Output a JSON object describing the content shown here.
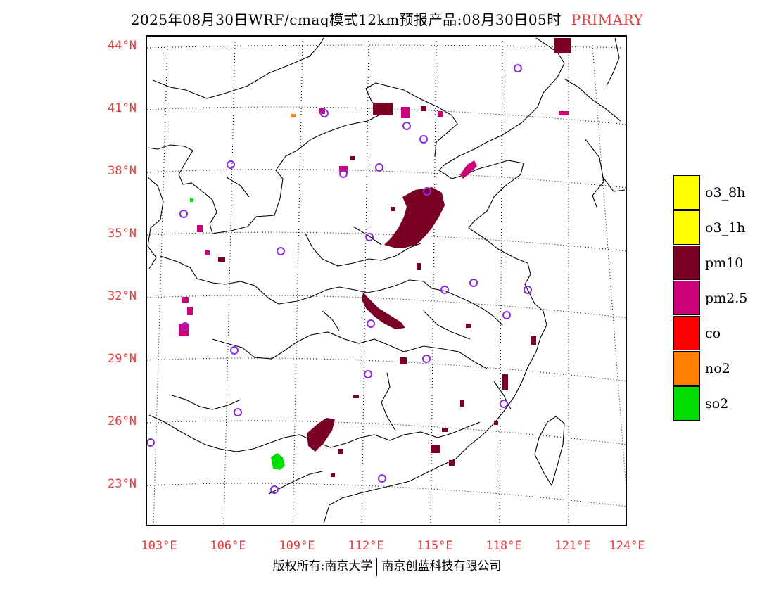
{
  "title": {
    "text": "2025年08月30日WRF/cmaq模式12km预报产品:08月30日05时",
    "tag": "PRIMARY",
    "tag_color": "#e33b3b"
  },
  "axes": {
    "lat_labels": [
      "44°N",
      "41°N",
      "38°N",
      "35°N",
      "32°N",
      "29°N",
      "26°N",
      "23°N"
    ],
    "lon_labels": [
      "103°E",
      "106°E",
      "109°E",
      "112°E",
      "115°E",
      "118°E",
      "121°E",
      "124°E"
    ],
    "label_color": "#e33b3b"
  },
  "legend": [
    {
      "label": "o3_8h",
      "color": "#ffff00"
    },
    {
      "label": "o3_1h",
      "color": "#ffff00"
    },
    {
      "label": "pm10",
      "color": "#7a0026"
    },
    {
      "label": "pm2.5",
      "color": "#cc0077"
    },
    {
      "label": "co",
      "color": "#ff0000"
    },
    {
      "label": "no2",
      "color": "#ff7f00"
    },
    {
      "label": "so2",
      "color": "#00dd00"
    }
  ],
  "markers": {
    "station_symbol": "circle",
    "station_color": "#8a2be2"
  },
  "footer": {
    "left": "版权所有:南京大学",
    "right": "南京创蓝科技有限公司"
  }
}
